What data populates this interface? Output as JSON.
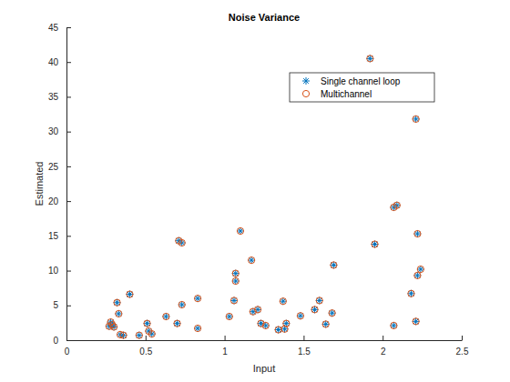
{
  "chart_data": {
    "type": "scatter",
    "title": "Noise Variance",
    "x_label": "Input",
    "y_label": "Estimated",
    "x": [
      0.27,
      0.28,
      0.29,
      0.3,
      0.32,
      0.33,
      0.34,
      0.36,
      0.4,
      0.46,
      0.51,
      0.52,
      0.54,
      0.63,
      0.7,
      0.71,
      0.73,
      0.73,
      0.83,
      0.83,
      1.03,
      1.06,
      1.07,
      1.07,
      1.1,
      1.17,
      1.18,
      1.21,
      1.23,
      1.26,
      1.34,
      1.37,
      1.38,
      1.39,
      1.48,
      1.57,
      1.6,
      1.64,
      1.68,
      1.69,
      1.92,
      1.95,
      2.07,
      2.07,
      2.09,
      2.18,
      2.21,
      2.22,
      2.22,
      2.24,
      2.21
    ],
    "series": [
      {
        "name": "Single channel loop",
        "color": "#0072bd",
        "marker": "asterisk",
        "values": [
          2.0,
          2.6,
          2.2,
          1.9,
          5.4,
          3.8,
          0.8,
          0.7,
          6.6,
          0.7,
          2.4,
          1.3,
          0.9,
          3.4,
          2.4,
          14.3,
          14.0,
          5.1,
          6.0,
          1.7,
          3.4,
          5.7,
          9.6,
          8.5,
          15.7,
          11.5,
          4.1,
          4.4,
          2.4,
          2.1,
          1.5,
          5.6,
          1.6,
          2.4,
          3.5,
          4.4,
          5.7,
          2.3,
          3.9,
          10.8,
          40.5,
          13.8,
          2.1,
          19.1,
          19.4,
          6.7,
          31.8,
          15.3,
          9.3,
          10.2,
          2.7
        ]
      },
      {
        "name": "Multichannel",
        "color": "#d95319",
        "marker": "circle",
        "values": [
          2.0,
          2.6,
          2.2,
          1.9,
          5.4,
          3.8,
          0.8,
          0.7,
          6.6,
          0.7,
          2.4,
          1.3,
          0.9,
          3.4,
          2.4,
          14.3,
          14.0,
          5.1,
          6.0,
          1.7,
          3.4,
          5.7,
          9.6,
          8.5,
          15.7,
          11.5,
          4.1,
          4.4,
          2.4,
          2.1,
          1.5,
          5.6,
          1.6,
          2.4,
          3.5,
          4.4,
          5.7,
          2.3,
          3.9,
          10.8,
          40.5,
          13.8,
          2.1,
          19.1,
          19.4,
          6.7,
          31.8,
          15.3,
          9.3,
          10.2,
          2.7
        ]
      }
    ],
    "xlim": [
      0,
      2.5
    ],
    "xticks": [
      0,
      0.5,
      1,
      1.5,
      2,
      2.5
    ],
    "ylim": [
      0,
      45
    ],
    "yticks": [
      0,
      5,
      10,
      15,
      20,
      25,
      30,
      35,
      40,
      45
    ],
    "grid": false,
    "legend": "northeast"
  }
}
